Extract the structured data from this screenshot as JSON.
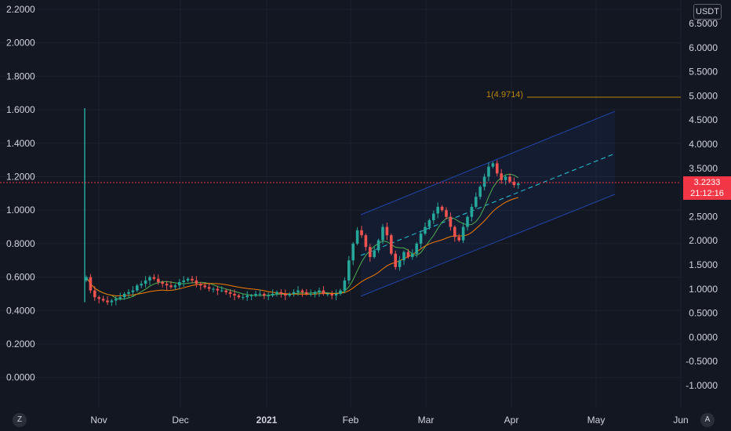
{
  "chart_data": {
    "type": "candlestick",
    "currency": "USDT",
    "left_axis": {
      "ticks": [
        "2.2000",
        "2.0000",
        "1.8000",
        "1.6000",
        "1.4000",
        "1.2000",
        "1.0000",
        "0.8000",
        "0.6000",
        "0.4000",
        "0.2000",
        "0.0000"
      ],
      "min": -0.1,
      "max": 2.25
    },
    "right_axis": {
      "ticks": [
        "6.5000",
        "6.0000",
        "5.5000",
        "5.0000",
        "4.5000",
        "4.0000",
        "3.5000",
        "3.0000",
        "2.5000",
        "2.0000",
        "1.5000",
        "1.0000",
        "0.5000",
        "0.0000",
        "-0.5000",
        "-1.0000"
      ],
      "min": -1.3,
      "max": 6.85
    },
    "x_axis": {
      "labels": [
        "Nov",
        "Dec",
        "2021",
        "Feb",
        "Mar",
        "Apr",
        "May",
        "Jun"
      ]
    },
    "current_price": {
      "value": "3.2233",
      "countdown": "21:12:16",
      "color": "#f23645"
    },
    "fib_level": {
      "label": "1(4.9714)",
      "value": 4.9714,
      "color": "#b8860b"
    },
    "channel": {
      "color": "#2962ff"
    },
    "up_color": "#26a69a",
    "down_color": "#ef5350",
    "ma_fast_color": "#4caf50",
    "ma_slow_color": "#f57c00",
    "series_close": [
      0.6,
      0.52,
      0.48,
      0.47,
      0.46,
      0.45,
      0.46,
      0.47,
      0.48,
      0.5,
      0.51,
      0.52,
      0.55,
      0.56,
      0.58,
      0.6,
      0.59,
      0.57,
      0.56,
      0.55,
      0.54,
      0.55,
      0.57,
      0.58,
      0.59,
      0.58,
      0.56,
      0.55,
      0.54,
      0.53,
      0.53,
      0.52,
      0.52,
      0.51,
      0.5,
      0.49,
      0.48,
      0.48,
      0.49,
      0.49,
      0.5,
      0.5,
      0.49,
      0.49,
      0.5,
      0.51,
      0.5,
      0.49,
      0.5,
      0.51,
      0.52,
      0.51,
      0.5,
      0.5,
      0.51,
      0.52,
      0.5,
      0.5,
      0.49,
      0.5,
      0.52,
      0.58,
      0.7,
      0.8,
      0.88,
      0.85,
      0.78,
      0.72,
      0.76,
      0.82,
      0.9,
      0.85,
      0.74,
      0.66,
      0.7,
      0.75,
      0.72,
      0.74,
      0.8,
      0.86,
      0.9,
      0.94,
      0.98,
      1.02,
      1.0,
      0.96,
      0.9,
      0.84,
      0.82,
      0.9,
      0.96,
      1.02,
      1.08,
      1.14,
      1.2,
      1.26,
      1.28,
      1.22,
      1.18,
      1.2,
      1.17,
      1.15,
      1.16
    ]
  },
  "controls": {
    "zoom_left": "Z",
    "auto_right": "A"
  }
}
